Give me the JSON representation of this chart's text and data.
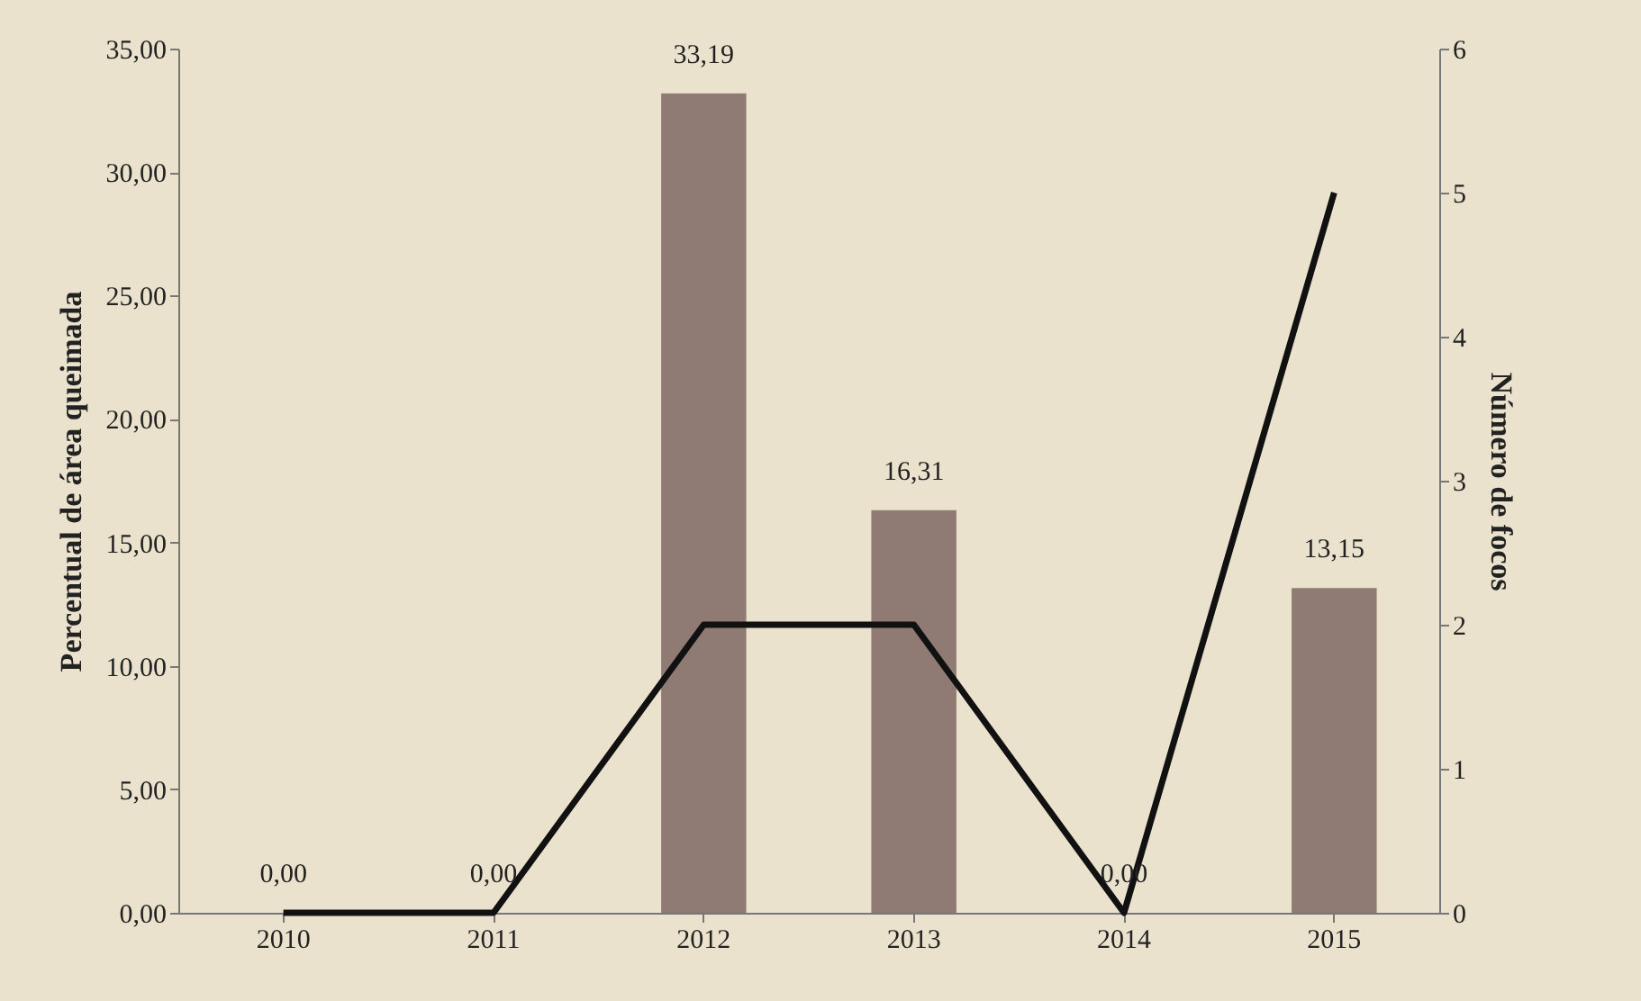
{
  "chart_data": {
    "type": "bar",
    "ylabel": "Percentual de área queimada",
    "y2label": "Número de focos",
    "categories": [
      "2010",
      "2011",
      "2012",
      "2013",
      "2014",
      "2015"
    ],
    "series": [
      {
        "color": "#8f7b74",
        "values": [
          0,
          0,
          33.19,
          16.31,
          0,
          13.15
        ],
        "value_labels": [
          "0,00",
          "0,00",
          "33,19",
          "16,31",
          "0,00",
          "13,15"
        ]
      },
      {
        "type": "line",
        "axis": "y2",
        "color": "#111111",
        "values": [
          0,
          0,
          2,
          2,
          0,
          5
        ],
        "marker": "none"
      }
    ],
    "ylim": [
      0,
      35
    ],
    "yticks": [
      {
        "value": 0,
        "label": "0,00"
      },
      {
        "value": 5,
        "label": "5,00"
      },
      {
        "value": 10,
        "label": "10,00"
      },
      {
        "value": 15,
        "label": "15,00"
      },
      {
        "value": 20,
        "label": "20,00"
      },
      {
        "value": 25,
        "label": "25,00"
      },
      {
        "value": 30,
        "label": "30,00"
      },
      {
        "value": 35,
        "label": "35,00"
      }
    ],
    "y2lim": [
      0,
      6
    ],
    "y2ticks": [
      0,
      1,
      2,
      3,
      4,
      5,
      6
    ],
    "grid": false
  }
}
